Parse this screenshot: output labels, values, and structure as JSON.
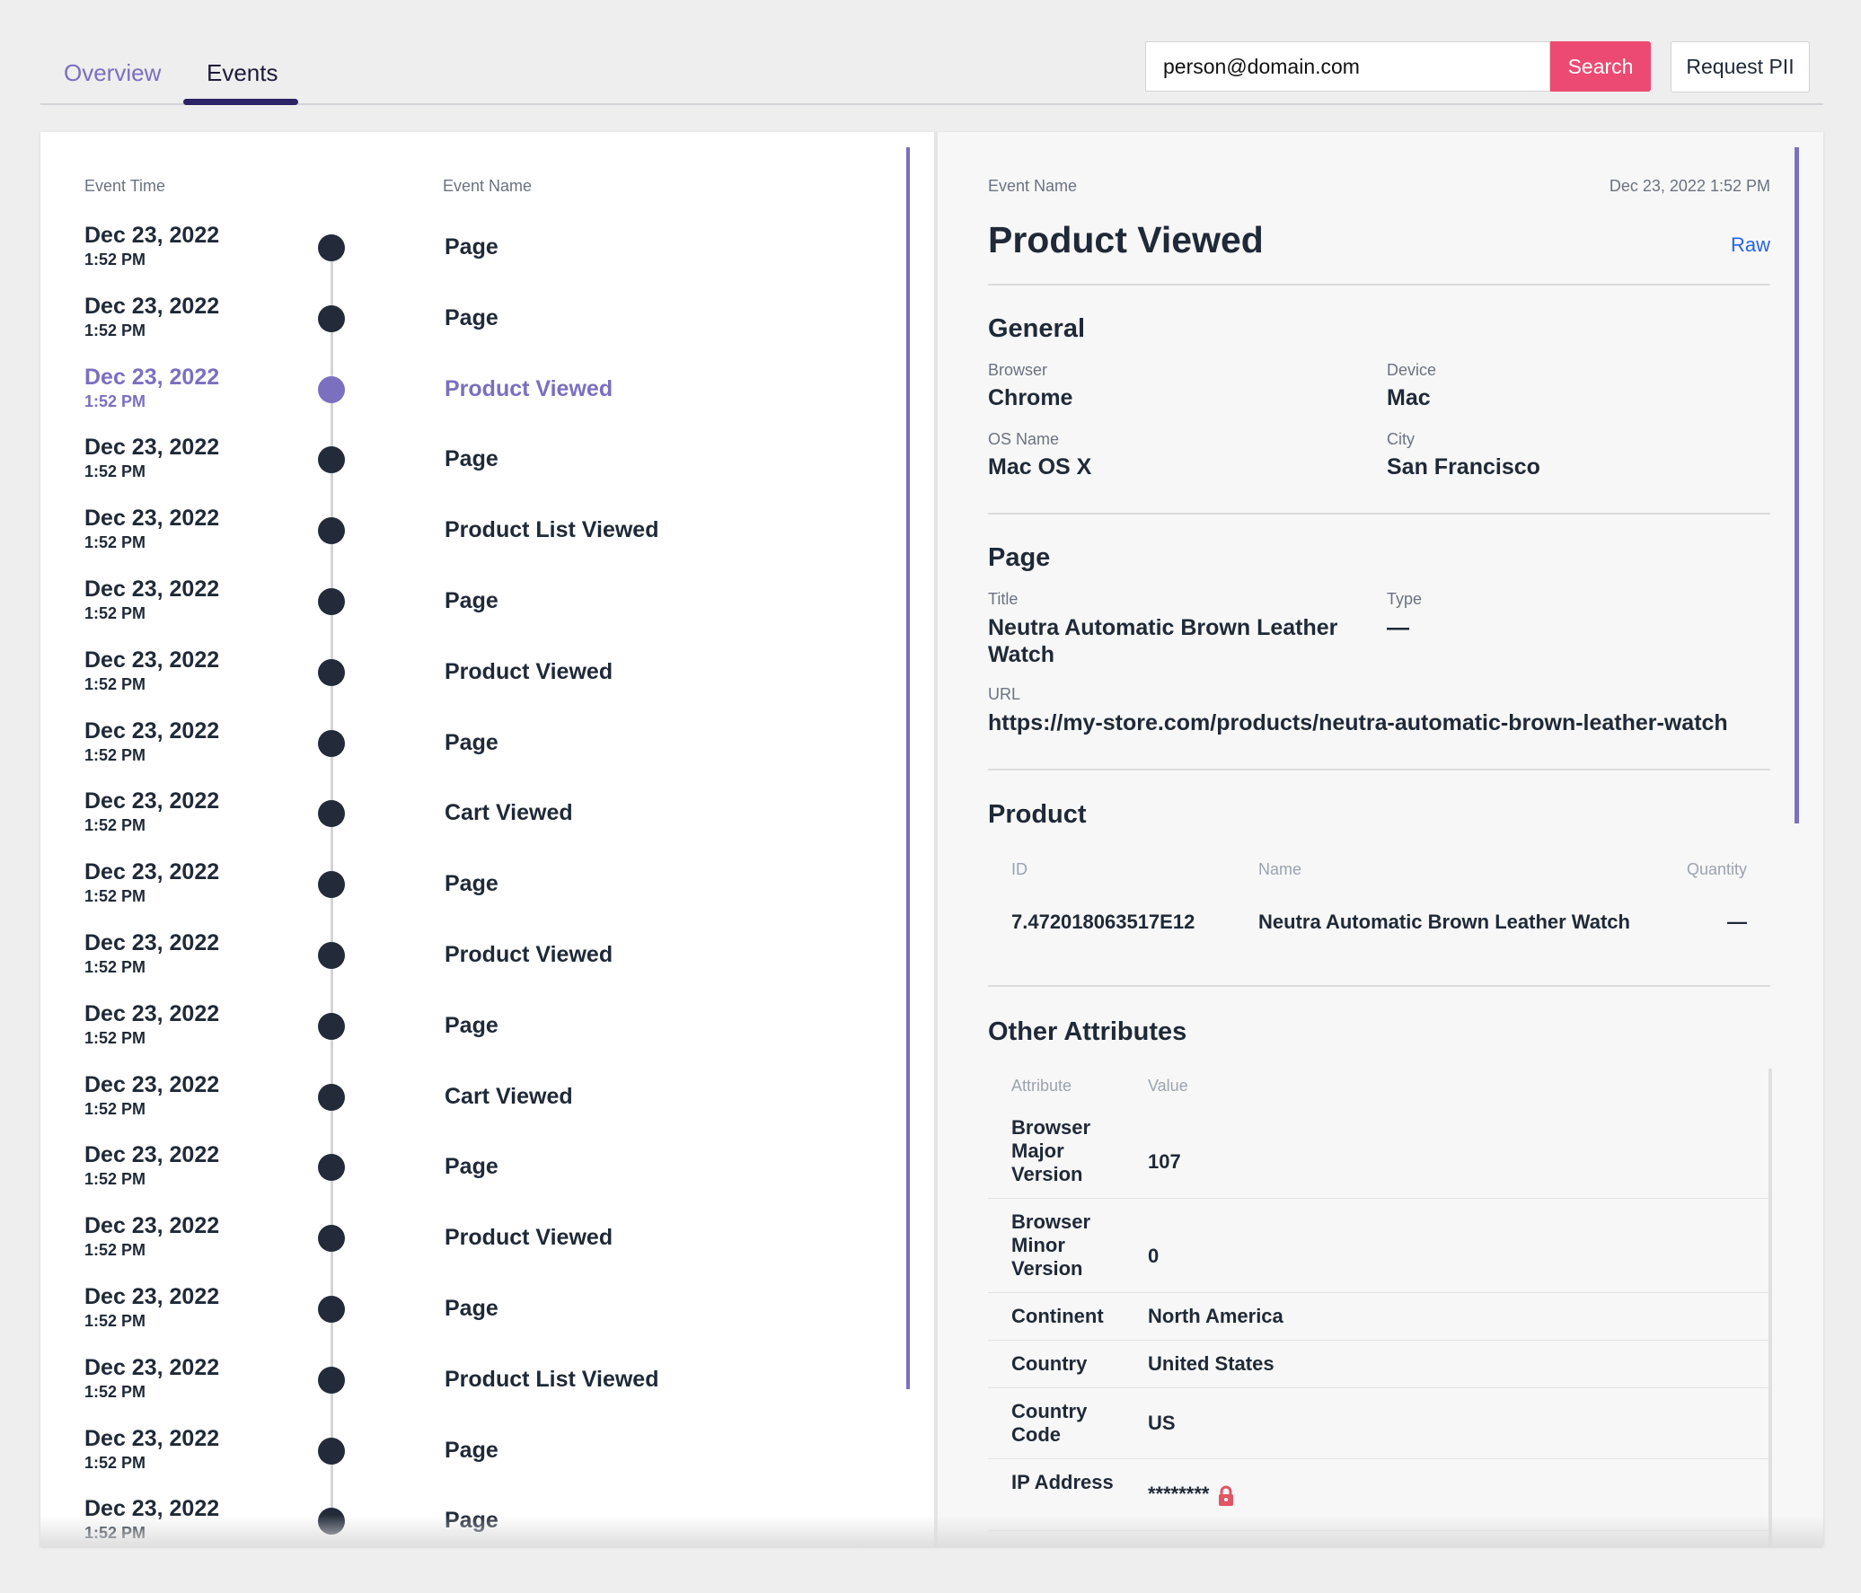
{
  "tabs": [
    {
      "label": "Overview",
      "active": false
    },
    {
      "label": "Events",
      "active": true
    }
  ],
  "search": {
    "value": "person@domain.com",
    "button_label": "Search"
  },
  "request_pii_label": "Request PII",
  "events_panel": {
    "col_time": "Event Time",
    "col_name": "Event Name",
    "events": [
      {
        "date": "Dec 23, 2022",
        "time": "1:52 PM",
        "name": "Page"
      },
      {
        "date": "Dec 23, 2022",
        "time": "1:52 PM",
        "name": "Page"
      },
      {
        "date": "Dec 23, 2022",
        "time": "1:52 PM",
        "name": "Product Viewed",
        "selected": true
      },
      {
        "date": "Dec 23, 2022",
        "time": "1:52 PM",
        "name": "Page"
      },
      {
        "date": "Dec 23, 2022",
        "time": "1:52 PM",
        "name": "Product List Viewed"
      },
      {
        "date": "Dec 23, 2022",
        "time": "1:52 PM",
        "name": "Page"
      },
      {
        "date": "Dec 23, 2022",
        "time": "1:52 PM",
        "name": "Product Viewed"
      },
      {
        "date": "Dec 23, 2022",
        "time": "1:52 PM",
        "name": "Page"
      },
      {
        "date": "Dec 23, 2022",
        "time": "1:52 PM",
        "name": "Cart Viewed"
      },
      {
        "date": "Dec 23, 2022",
        "time": "1:52 PM",
        "name": "Page"
      },
      {
        "date": "Dec 23, 2022",
        "time": "1:52 PM",
        "name": "Product Viewed"
      },
      {
        "date": "Dec 23, 2022",
        "time": "1:52 PM",
        "name": "Page"
      },
      {
        "date": "Dec 23, 2022",
        "time": "1:52 PM",
        "name": "Cart Viewed"
      },
      {
        "date": "Dec 23, 2022",
        "time": "1:52 PM",
        "name": "Page"
      },
      {
        "date": "Dec 23, 2022",
        "time": "1:52 PM",
        "name": "Product Viewed"
      },
      {
        "date": "Dec 23, 2022",
        "time": "1:52 PM",
        "name": "Page"
      },
      {
        "date": "Dec 23, 2022",
        "time": "1:52 PM",
        "name": "Product List Viewed"
      },
      {
        "date": "Dec 23, 2022",
        "time": "1:52 PM",
        "name": "Page"
      },
      {
        "date": "Dec 23, 2022",
        "time": "1:52 PM",
        "name": "Page"
      }
    ]
  },
  "detail": {
    "label": "Event Name",
    "timestamp": "Dec 23, 2022 1:52 PM",
    "title": "Product Viewed",
    "raw_label": "Raw",
    "general": {
      "heading": "General",
      "browser_label": "Browser",
      "browser": "Chrome",
      "device_label": "Device",
      "device": "Mac",
      "os_label": "OS Name",
      "os": "Mac OS X",
      "city_label": "City",
      "city": "San Francisco"
    },
    "page": {
      "heading": "Page",
      "title_label": "Title",
      "title": "Neutra Automatic Brown Leather Watch",
      "type_label": "Type",
      "type": "—",
      "url_label": "URL",
      "url": "https://my-store.com/products/neutra-automatic-brown-leather-watch"
    },
    "product": {
      "heading": "Product",
      "col_id": "ID",
      "col_name": "Name",
      "col_qty": "Quantity",
      "id": "7.472018063517E12",
      "name": "Neutra Automatic Brown Leather Watch",
      "quantity": "—"
    },
    "other": {
      "heading": "Other Attributes",
      "col_attr": "Attribute",
      "col_value": "Value",
      "rows": [
        {
          "key": "Browser Major Version",
          "value": "107"
        },
        {
          "key": "Browser Minor Version",
          "value": "0"
        },
        {
          "key": "Continent",
          "value": "North America"
        },
        {
          "key": "Country",
          "value": "United States"
        },
        {
          "key": "Country Code",
          "value": "US"
        },
        {
          "key": "IP Address",
          "value": "********",
          "locked": true
        }
      ]
    }
  },
  "colors": {
    "accent": "#7b6fc0",
    "search_button": "#ec4a72",
    "dark": "#232b3a",
    "lock": "#e25563"
  },
  "icons": {
    "lock": "lock-icon"
  }
}
